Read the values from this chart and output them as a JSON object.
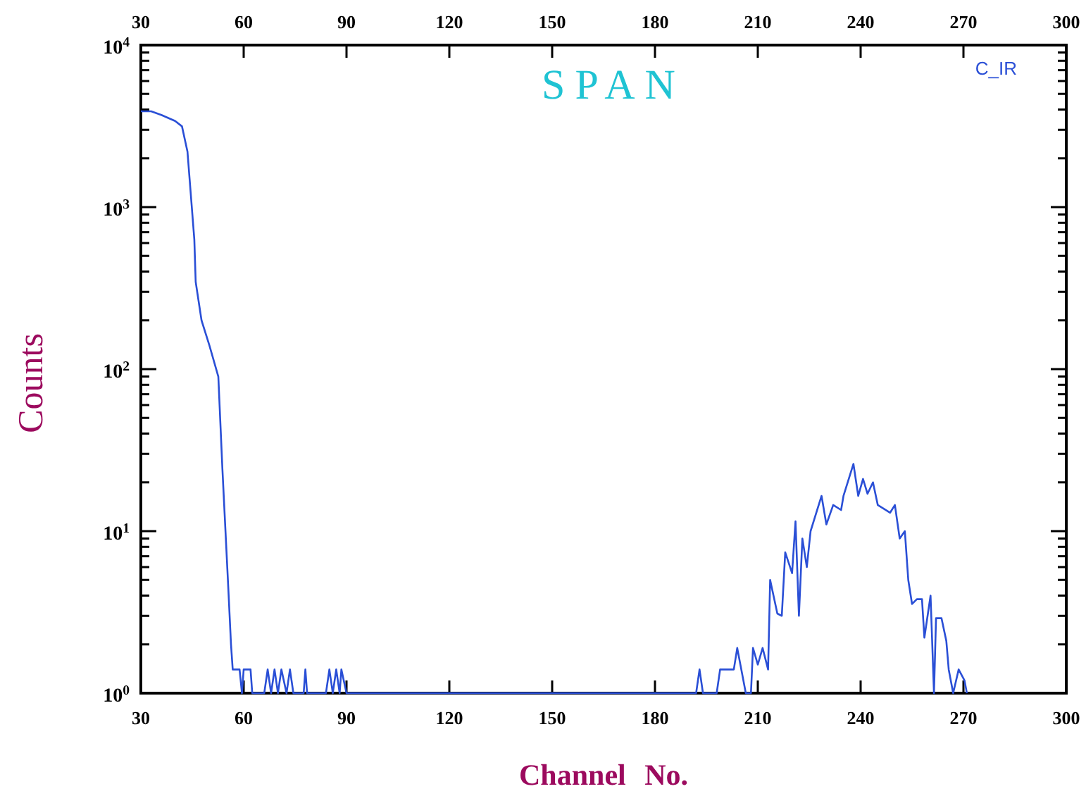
{
  "chart_data": {
    "type": "line",
    "title": "SPAN",
    "xlabel": "Channel No.",
    "ylabel": "Counts",
    "legend": "top right",
    "log": "y",
    "grid": false,
    "marker": "none",
    "line_style": "solid",
    "xlim": [
      30,
      300
    ],
    "xticks": [
      30,
      60,
      90,
      120,
      150,
      180,
      210,
      240,
      270,
      300
    ],
    "x2lim": [
      30,
      300
    ],
    "x2ticks": [
      30,
      60,
      90,
      120,
      150,
      180,
      210,
      240,
      270,
      300
    ],
    "ylim": [
      1,
      10000
    ],
    "yticks": [
      {
        "value": 1,
        "label": "10$^{0}$"
      },
      {
        "value": 2,
        "label": null
      },
      {
        "value": 3,
        "label": null
      },
      {
        "value": 4,
        "label": null
      },
      {
        "value": 5,
        "label": null
      },
      {
        "value": 6,
        "label": null
      },
      {
        "value": 7,
        "label": null
      },
      {
        "value": 8,
        "label": null
      },
      {
        "value": 9,
        "label": null
      },
      {
        "value": 10,
        "label": "10$^{1}$"
      },
      {
        "value": 20,
        "label": null
      },
      {
        "value": 30,
        "label": null
      },
      {
        "value": 40,
        "label": null
      },
      {
        "value": 50,
        "label": null
      },
      {
        "value": 60,
        "label": null
      },
      {
        "value": 70,
        "label": null
      },
      {
        "value": 80,
        "label": null
      },
      {
        "value": 90,
        "label": null
      },
      {
        "value": 100,
        "label": "10$^{2}$"
      },
      {
        "value": 200,
        "label": null
      },
      {
        "value": 300,
        "label": null
      },
      {
        "value": 400,
        "label": null
      },
      {
        "value": 500,
        "label": null
      },
      {
        "value": 600,
        "label": null
      },
      {
        "value": 700,
        "label": null
      },
      {
        "value": 800,
        "label": null
      },
      {
        "value": 900,
        "label": null
      },
      {
        "value": 1000,
        "label": "10$^{3}$"
      },
      {
        "value": 2000,
        "label": null
      },
      {
        "value": 3000,
        "label": null
      },
      {
        "value": 4000,
        "label": null
      },
      {
        "value": 5000,
        "label": null
      },
      {
        "value": 6000,
        "label": null
      },
      {
        "value": 7000,
        "label": null
      },
      {
        "value": 8000,
        "label": null
      },
      {
        "value": 9000,
        "label": null
      },
      {
        "value": 10000,
        "label": "10$^{4}$"
      }
    ],
    "series": [
      {
        "name": "C_IR",
        "color": "#2a4fd6",
        "x": [
          30,
          33,
          36,
          40,
          42,
          43.6,
          45.6,
          46,
          47.7,
          50,
          52.6,
          53.8,
          55.5,
          56.3,
          56.8,
          58.8,
          59.5,
          60,
          60.5,
          62,
          62.5,
          66,
          67,
          68,
          69,
          70,
          71,
          72.5,
          73.5,
          74.5,
          77.5,
          78,
          78.5,
          84,
          85,
          86,
          87,
          88,
          88.5,
          90,
          91,
          192,
          193,
          194,
          198,
          199,
          203,
          204,
          206.5,
          208,
          208.6,
          210,
          211.4,
          213,
          213.6,
          215.7,
          217,
          218,
          220,
          221,
          222,
          223,
          224.3,
          225.4,
          228.6,
          230,
          232,
          234.3,
          235,
          237.9,
          239.3,
          240.7,
          242,
          243.6,
          245,
          248.6,
          250,
          251.4,
          252.9,
          253.9,
          255,
          256.4,
          257.9,
          258.6,
          260.4,
          261.4,
          262,
          263.6,
          265,
          265.7,
          267,
          268.6,
          270.3,
          271
        ],
        "values": [
          3900,
          3900,
          3700,
          3400,
          3150,
          2200,
          630,
          345,
          200,
          140,
          90,
          24,
          4.5,
          2,
          1.4,
          1.4,
          1,
          1.4,
          1.4,
          1.4,
          1,
          1,
          1.4,
          1,
          1.4,
          1,
          1.4,
          1,
          1.4,
          1,
          1,
          1.4,
          1,
          1,
          1.4,
          1,
          1.4,
          1,
          1.4,
          1,
          1,
          1,
          1.4,
          1,
          1,
          1.4,
          1.4,
          1.9,
          1,
          1,
          1.9,
          1.5,
          1.9,
          1.4,
          5,
          3.1,
          3,
          7.4,
          5.5,
          11.5,
          3,
          9,
          6,
          10,
          16.5,
          11,
          14.5,
          13.5,
          16.5,
          26,
          16.5,
          21,
          17,
          20,
          14.5,
          13,
          14.5,
          9,
          10,
          5,
          3.55,
          3.8,
          3.8,
          2.2,
          4,
          1,
          2.9,
          2.9,
          2.1,
          1.4,
          1,
          1.4,
          1.2,
          1
        ]
      }
    ]
  }
}
